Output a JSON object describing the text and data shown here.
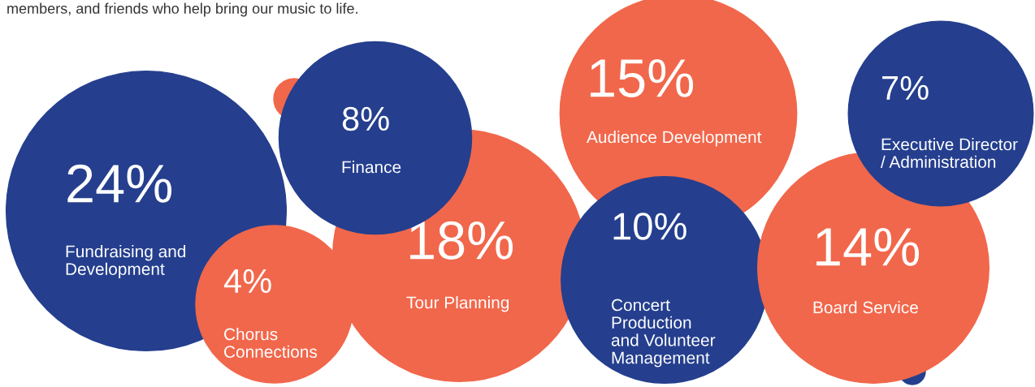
{
  "chart_data": {
    "type": "other",
    "categories": [
      "Fundraising and\nDevelopment",
      "Chorus\nConnections",
      "Tour Planning",
      "Finance",
      "Audience Development",
      "Concert\nProduction\nand Volunteer\nManagement",
      "Board Service",
      "Executive Director\n/ Administration"
    ],
    "values": [
      24,
      4,
      18,
      8,
      15,
      10,
      14,
      7
    ],
    "value_labels": [
      "24%",
      "4%",
      "18%",
      "8%",
      "15%",
      "10%",
      "14%",
      "7%"
    ],
    "colors": [
      "#253f8e",
      "#f1674b",
      "#f1674b",
      "#253f8e",
      "#f1674b",
      "#253f8e",
      "#f1674b",
      "#253f8e"
    ],
    "annotations": [
      "members, and friends who help bring our music to life."
    ]
  }
}
